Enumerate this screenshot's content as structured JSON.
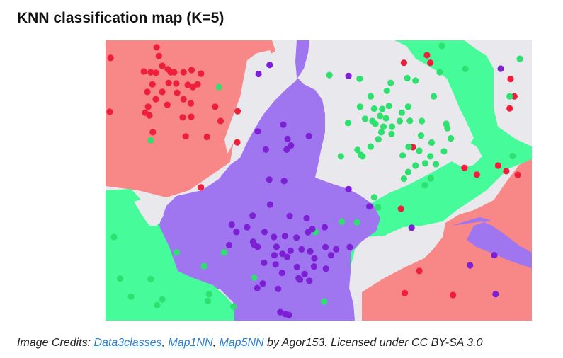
{
  "title": "KNN classification map (K=5)",
  "credits": {
    "prefix": "Image Credits: ",
    "links": [
      "Data3classes",
      "Map1NN",
      "Map5NN"
    ],
    "sep1": ", ",
    "sep2": ", ",
    "suffix": " by Agor153. Licensed under CC BY-SA 3.0"
  },
  "chart_data": {
    "type": "scatter",
    "title": "KNN classification map (K=5)",
    "k": 5,
    "colors": {
      "red_region": "#f88787",
      "green_region": "#45fb9a",
      "purple_region": "#a075f0",
      "undecided_region": "#e9e8ec",
      "red_point": "#ee1f3a",
      "green_point": "#2ee06e",
      "purple_point": "#7d1fd4",
      "misclassified_outline": "#1a1a1a"
    },
    "classes": [
      "red",
      "green",
      "purple"
    ],
    "xlim": [
      0,
      100
    ],
    "ylim": [
      0,
      100
    ],
    "series": [
      {
        "name": "red",
        "points": [
          [
            1.2,
            93.7
          ],
          [
            12.0,
            97.5
          ],
          [
            12.5,
            94.4
          ],
          [
            9.0,
            88.9
          ],
          [
            10.6,
            88.6
          ],
          [
            11.8,
            88.4
          ],
          [
            13.3,
            90.9
          ],
          [
            14.6,
            89.7
          ],
          [
            15.3,
            88.6
          ],
          [
            16.1,
            88.6
          ],
          [
            18.3,
            88.6
          ],
          [
            20.2,
            89.4
          ],
          [
            22.4,
            88.1
          ],
          [
            19.3,
            84.1
          ],
          [
            21.6,
            84.3
          ],
          [
            11.0,
            84.3
          ],
          [
            14.8,
            84.8
          ],
          [
            16.6,
            84.6
          ],
          [
            20.5,
            83.3
          ],
          [
            9.8,
            81.6
          ],
          [
            13.3,
            81.6
          ],
          [
            16.8,
            81.3
          ],
          [
            11.8,
            79.0
          ],
          [
            18.3,
            79.0
          ],
          [
            10.0,
            76.3
          ],
          [
            14.5,
            77.0
          ],
          [
            20.0,
            77.5
          ],
          [
            9.3,
            74.2
          ],
          [
            10.3,
            73.2
          ],
          [
            1.0,
            74.5
          ],
          [
            25.7,
            76.3
          ],
          [
            31.0,
            74.7
          ],
          [
            18.1,
            72.5
          ],
          [
            20.1,
            72.7
          ],
          [
            23.8,
            65.5
          ],
          [
            27.0,
            71.2
          ],
          [
            18.8,
            65.7
          ],
          [
            11.1,
            67.2
          ],
          [
            22.4,
            47.5
          ],
          [
            30.9,
            63.6
          ],
          [
            75.4,
            94.7
          ],
          [
            94.8,
            75.7
          ],
          [
            95.0,
            86.2
          ],
          [
            94.0,
            53.3
          ],
          [
            92.1,
            55.3
          ],
          [
            76.2,
            92.0
          ],
          [
            72.1,
            61.9
          ],
          [
            96.7,
            52.0
          ],
          [
            70.0,
            92.0
          ],
          [
            69.3,
            39.9
          ],
          [
            73.6,
            17.7
          ],
          [
            70.2,
            9.8
          ],
          [
            81.5,
            9.1
          ],
          [
            95.9,
            80.0
          ],
          [
            87.1,
            52.1
          ],
          [
            84.2,
            54.5
          ]
        ]
      },
      {
        "name": "green",
        "points": [
          [
            78.9,
            98.0
          ],
          [
            62.2,
            80.0
          ],
          [
            59.6,
            86.3
          ],
          [
            52.5,
            87.6
          ],
          [
            66.9,
            84.8
          ],
          [
            70.8,
            86.5
          ],
          [
            78.4,
            88.6
          ],
          [
            72.7,
            85.6
          ],
          [
            77.0,
            80.0
          ],
          [
            59.7,
            76.3
          ],
          [
            71.0,
            76.3
          ],
          [
            63.0,
            75.6
          ],
          [
            64.9,
            75.5
          ],
          [
            66.5,
            76.6
          ],
          [
            64.4,
            73.0
          ],
          [
            65.8,
            72.2
          ],
          [
            69.5,
            74.2
          ],
          [
            60.9,
            72.0
          ],
          [
            63.3,
            70.2
          ],
          [
            65.2,
            69.2
          ],
          [
            69.0,
            71.2
          ],
          [
            71.4,
            71.3
          ],
          [
            74.2,
            71.2
          ],
          [
            56.9,
            70.5
          ],
          [
            62.6,
            71.2
          ],
          [
            67.2,
            69.2
          ],
          [
            64.7,
            67.2
          ],
          [
            67.1,
            66.6
          ],
          [
            64.0,
            64.7
          ],
          [
            62.2,
            62.1
          ],
          [
            71.1,
            62.0
          ],
          [
            73.6,
            60.6
          ],
          [
            76.5,
            63.5
          ],
          [
            79.4,
            60.4
          ],
          [
            76.2,
            58.6
          ],
          [
            75.0,
            56.1
          ],
          [
            72.7,
            55.3
          ],
          [
            71.0,
            53.0
          ],
          [
            70.0,
            50.6
          ],
          [
            74.9,
            48.3
          ],
          [
            59.1,
            60.9
          ],
          [
            59.9,
            59.1
          ],
          [
            60.3,
            58.6
          ],
          [
            55.2,
            58.6
          ],
          [
            63.0,
            44.0
          ],
          [
            63.9,
            40.4
          ],
          [
            55.4,
            35.3
          ],
          [
            59.0,
            35.0
          ],
          [
            49.2,
            31.6
          ],
          [
            84.4,
            89.8
          ],
          [
            94.8,
            80.0
          ],
          [
            97.2,
            93.4
          ],
          [
            95.5,
            58.7
          ],
          [
            77.5,
            55.8
          ],
          [
            80.2,
            68.6
          ],
          [
            76.3,
            50.7
          ],
          [
            79.9,
            70.2
          ],
          [
            81.0,
            65.0
          ],
          [
            66.0,
            82.0
          ],
          [
            74.0,
            66.0
          ],
          [
            69.7,
            58.9
          ],
          [
            2.0,
            29.8
          ],
          [
            6.0,
            8.5
          ],
          [
            12.1,
            5.5
          ],
          [
            24.3,
            9.4
          ],
          [
            30.0,
            5.0
          ],
          [
            10.6,
            14.8
          ],
          [
            23.1,
            19.4
          ],
          [
            16.7,
            24.3
          ],
          [
            3.4,
            15.0
          ],
          [
            13.3,
            7.5
          ],
          [
            24.0,
            7.0
          ],
          [
            34.9,
            15.3
          ],
          [
            27.8,
            24.3
          ],
          [
            26.6,
            83.3
          ],
          [
            10.6,
            64.3
          ],
          [
            51.3,
            6.8
          ]
        ]
      },
      {
        "name": "purple",
        "points": [
          [
            35.9,
            88.0
          ],
          [
            38.5,
            91.2
          ],
          [
            41.7,
            69.9
          ],
          [
            42.7,
            64.8
          ],
          [
            35.7,
            67.5
          ],
          [
            37.6,
            61.0
          ],
          [
            43.5,
            62.5
          ],
          [
            47.7,
            65.8
          ],
          [
            42.5,
            61.0
          ],
          [
            38.4,
            50.3
          ],
          [
            41.9,
            49.8
          ],
          [
            34.5,
            37.4
          ],
          [
            38.6,
            41.4
          ],
          [
            43.2,
            37.3
          ],
          [
            47.2,
            36.5
          ],
          [
            51.4,
            33.3
          ],
          [
            48.5,
            32.6
          ],
          [
            47.5,
            31.5
          ],
          [
            37.3,
            31.6
          ],
          [
            39.5,
            29.8
          ],
          [
            42.1,
            30.1
          ],
          [
            44.8,
            29.6
          ],
          [
            40.1,
            26.3
          ],
          [
            43.4,
            24.9
          ],
          [
            46.0,
            25.4
          ],
          [
            48.0,
            24.7
          ],
          [
            51.6,
            26.2
          ],
          [
            49.0,
            22.2
          ],
          [
            54.1,
            25.4
          ],
          [
            57.3,
            26.2
          ],
          [
            52.9,
            23.3
          ],
          [
            29.6,
            34.2
          ],
          [
            30.7,
            31.6
          ],
          [
            33.2,
            33.3
          ],
          [
            34.9,
            27.0
          ],
          [
            35.7,
            26.3
          ],
          [
            39.6,
            23.3
          ],
          [
            37.2,
            20.6
          ],
          [
            39.9,
            20.0
          ],
          [
            42.6,
            22.7
          ],
          [
            44.9,
            19.1
          ],
          [
            41.4,
            17.0
          ],
          [
            46.7,
            16.6
          ],
          [
            48.9,
            19.3
          ],
          [
            51.7,
            18.5
          ],
          [
            45.3,
            15.1
          ],
          [
            47.8,
            14.2
          ],
          [
            29.0,
            26.9
          ],
          [
            34.6,
            28.1
          ],
          [
            41.5,
            23.8
          ],
          [
            35.6,
            11.6
          ],
          [
            36.9,
            13.2
          ],
          [
            40.5,
            11.3
          ],
          [
            45.6,
            14.6
          ],
          [
            41.0,
            3.0
          ],
          [
            42.2,
            2.3
          ],
          [
            43.0,
            2.0
          ],
          [
            92.7,
            89.9
          ],
          [
            57.0,
            87.3
          ],
          [
            85.5,
            19.7
          ],
          [
            91.2,
            23.3
          ],
          [
            61.9,
            40.7
          ],
          [
            57.0,
            46.9
          ],
          [
            71.8,
            33.1
          ],
          [
            91.5,
            9.4
          ]
        ]
      }
    ]
  }
}
